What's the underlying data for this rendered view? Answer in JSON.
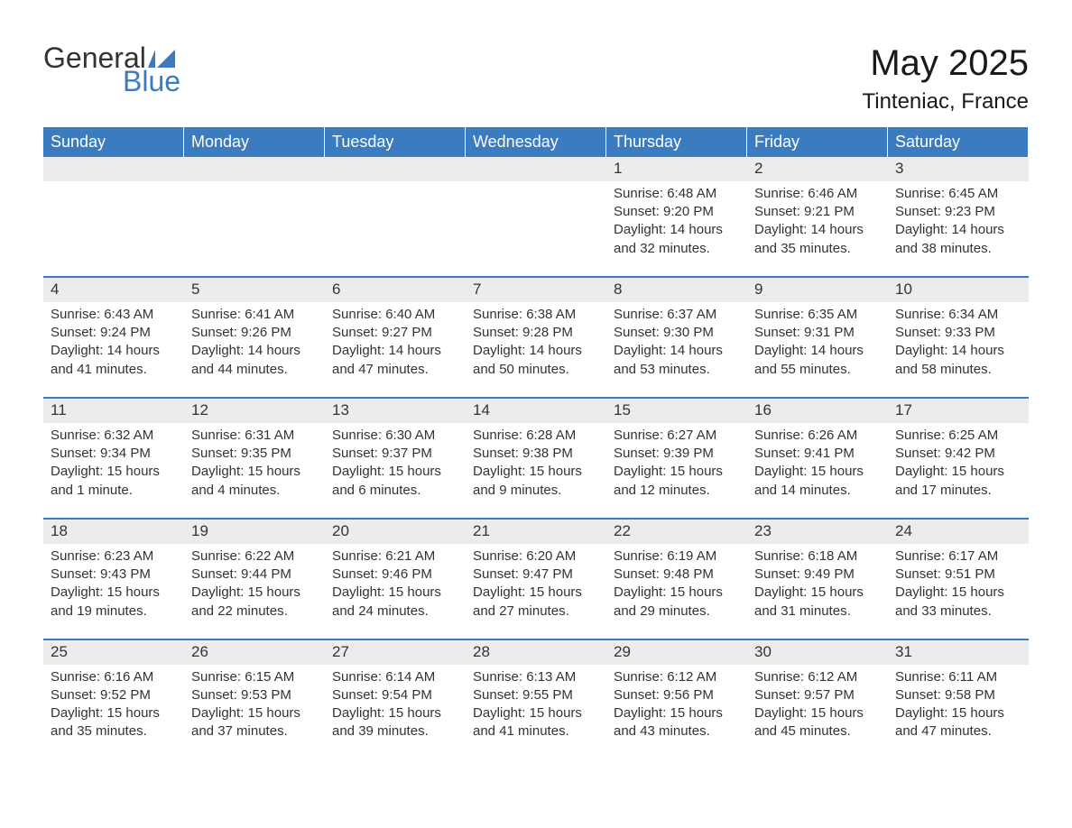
{
  "logo": {
    "text_general": "General",
    "text_blue": "Blue"
  },
  "title": "May 2025",
  "location": "Tinteniac, France",
  "colors": {
    "header_bg": "#3b7bbf",
    "header_text": "#ffffff",
    "date_row_bg": "#ececec",
    "border": "#3b7bbf",
    "body_text": "#333333",
    "background": "#ffffff"
  },
  "day_headers": [
    "Sunday",
    "Monday",
    "Tuesday",
    "Wednesday",
    "Thursday",
    "Friday",
    "Saturday"
  ],
  "weeks": [
    [
      {
        "date": "",
        "sunrise": "",
        "sunset": "",
        "daylight": ""
      },
      {
        "date": "",
        "sunrise": "",
        "sunset": "",
        "daylight": ""
      },
      {
        "date": "",
        "sunrise": "",
        "sunset": "",
        "daylight": ""
      },
      {
        "date": "",
        "sunrise": "",
        "sunset": "",
        "daylight": ""
      },
      {
        "date": "1",
        "sunrise": "Sunrise: 6:48 AM",
        "sunset": "Sunset: 9:20 PM",
        "daylight": "Daylight: 14 hours and 32 minutes."
      },
      {
        "date": "2",
        "sunrise": "Sunrise: 6:46 AM",
        "sunset": "Sunset: 9:21 PM",
        "daylight": "Daylight: 14 hours and 35 minutes."
      },
      {
        "date": "3",
        "sunrise": "Sunrise: 6:45 AM",
        "sunset": "Sunset: 9:23 PM",
        "daylight": "Daylight: 14 hours and 38 minutes."
      }
    ],
    [
      {
        "date": "4",
        "sunrise": "Sunrise: 6:43 AM",
        "sunset": "Sunset: 9:24 PM",
        "daylight": "Daylight: 14 hours and 41 minutes."
      },
      {
        "date": "5",
        "sunrise": "Sunrise: 6:41 AM",
        "sunset": "Sunset: 9:26 PM",
        "daylight": "Daylight: 14 hours and 44 minutes."
      },
      {
        "date": "6",
        "sunrise": "Sunrise: 6:40 AM",
        "sunset": "Sunset: 9:27 PM",
        "daylight": "Daylight: 14 hours and 47 minutes."
      },
      {
        "date": "7",
        "sunrise": "Sunrise: 6:38 AM",
        "sunset": "Sunset: 9:28 PM",
        "daylight": "Daylight: 14 hours and 50 minutes."
      },
      {
        "date": "8",
        "sunrise": "Sunrise: 6:37 AM",
        "sunset": "Sunset: 9:30 PM",
        "daylight": "Daylight: 14 hours and 53 minutes."
      },
      {
        "date": "9",
        "sunrise": "Sunrise: 6:35 AM",
        "sunset": "Sunset: 9:31 PM",
        "daylight": "Daylight: 14 hours and 55 minutes."
      },
      {
        "date": "10",
        "sunrise": "Sunrise: 6:34 AM",
        "sunset": "Sunset: 9:33 PM",
        "daylight": "Daylight: 14 hours and 58 minutes."
      }
    ],
    [
      {
        "date": "11",
        "sunrise": "Sunrise: 6:32 AM",
        "sunset": "Sunset: 9:34 PM",
        "daylight": "Daylight: 15 hours and 1 minute."
      },
      {
        "date": "12",
        "sunrise": "Sunrise: 6:31 AM",
        "sunset": "Sunset: 9:35 PM",
        "daylight": "Daylight: 15 hours and 4 minutes."
      },
      {
        "date": "13",
        "sunrise": "Sunrise: 6:30 AM",
        "sunset": "Sunset: 9:37 PM",
        "daylight": "Daylight: 15 hours and 6 minutes."
      },
      {
        "date": "14",
        "sunrise": "Sunrise: 6:28 AM",
        "sunset": "Sunset: 9:38 PM",
        "daylight": "Daylight: 15 hours and 9 minutes."
      },
      {
        "date": "15",
        "sunrise": "Sunrise: 6:27 AM",
        "sunset": "Sunset: 9:39 PM",
        "daylight": "Daylight: 15 hours and 12 minutes."
      },
      {
        "date": "16",
        "sunrise": "Sunrise: 6:26 AM",
        "sunset": "Sunset: 9:41 PM",
        "daylight": "Daylight: 15 hours and 14 minutes."
      },
      {
        "date": "17",
        "sunrise": "Sunrise: 6:25 AM",
        "sunset": "Sunset: 9:42 PM",
        "daylight": "Daylight: 15 hours and 17 minutes."
      }
    ],
    [
      {
        "date": "18",
        "sunrise": "Sunrise: 6:23 AM",
        "sunset": "Sunset: 9:43 PM",
        "daylight": "Daylight: 15 hours and 19 minutes."
      },
      {
        "date": "19",
        "sunrise": "Sunrise: 6:22 AM",
        "sunset": "Sunset: 9:44 PM",
        "daylight": "Daylight: 15 hours and 22 minutes."
      },
      {
        "date": "20",
        "sunrise": "Sunrise: 6:21 AM",
        "sunset": "Sunset: 9:46 PM",
        "daylight": "Daylight: 15 hours and 24 minutes."
      },
      {
        "date": "21",
        "sunrise": "Sunrise: 6:20 AM",
        "sunset": "Sunset: 9:47 PM",
        "daylight": "Daylight: 15 hours and 27 minutes."
      },
      {
        "date": "22",
        "sunrise": "Sunrise: 6:19 AM",
        "sunset": "Sunset: 9:48 PM",
        "daylight": "Daylight: 15 hours and 29 minutes."
      },
      {
        "date": "23",
        "sunrise": "Sunrise: 6:18 AM",
        "sunset": "Sunset: 9:49 PM",
        "daylight": "Daylight: 15 hours and 31 minutes."
      },
      {
        "date": "24",
        "sunrise": "Sunrise: 6:17 AM",
        "sunset": "Sunset: 9:51 PM",
        "daylight": "Daylight: 15 hours and 33 minutes."
      }
    ],
    [
      {
        "date": "25",
        "sunrise": "Sunrise: 6:16 AM",
        "sunset": "Sunset: 9:52 PM",
        "daylight": "Daylight: 15 hours and 35 minutes."
      },
      {
        "date": "26",
        "sunrise": "Sunrise: 6:15 AM",
        "sunset": "Sunset: 9:53 PM",
        "daylight": "Daylight: 15 hours and 37 minutes."
      },
      {
        "date": "27",
        "sunrise": "Sunrise: 6:14 AM",
        "sunset": "Sunset: 9:54 PM",
        "daylight": "Daylight: 15 hours and 39 minutes."
      },
      {
        "date": "28",
        "sunrise": "Sunrise: 6:13 AM",
        "sunset": "Sunset: 9:55 PM",
        "daylight": "Daylight: 15 hours and 41 minutes."
      },
      {
        "date": "29",
        "sunrise": "Sunrise: 6:12 AM",
        "sunset": "Sunset: 9:56 PM",
        "daylight": "Daylight: 15 hours and 43 minutes."
      },
      {
        "date": "30",
        "sunrise": "Sunrise: 6:12 AM",
        "sunset": "Sunset: 9:57 PM",
        "daylight": "Daylight: 15 hours and 45 minutes."
      },
      {
        "date": "31",
        "sunrise": "Sunrise: 6:11 AM",
        "sunset": "Sunset: 9:58 PM",
        "daylight": "Daylight: 15 hours and 47 minutes."
      }
    ]
  ]
}
